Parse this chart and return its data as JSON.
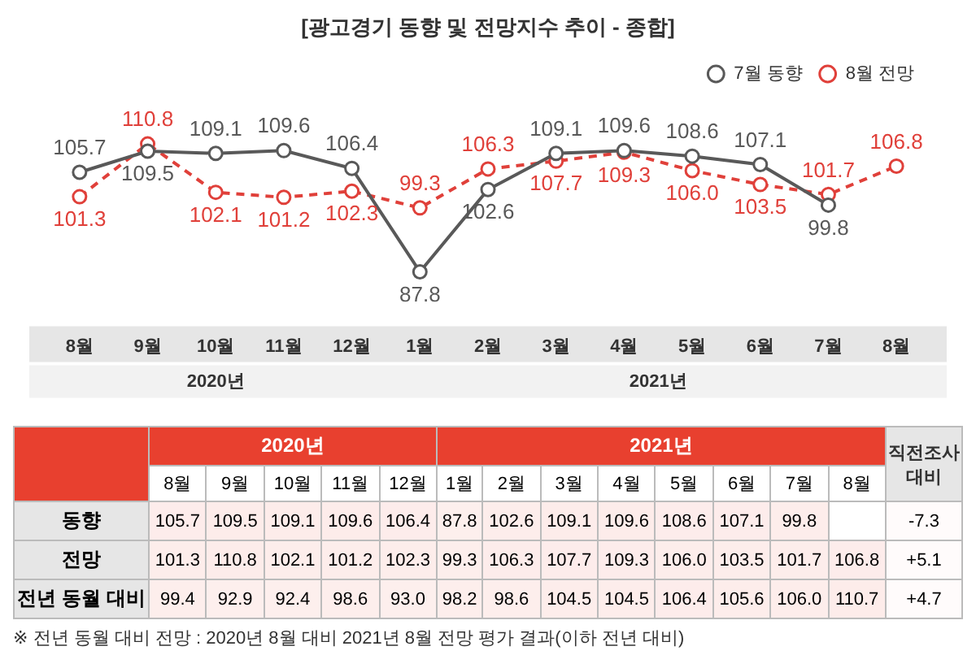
{
  "chart_data": [
    {
      "type": "line",
      "title": "[광고경기 동향 및 전망지수 추이 - 종합]",
      "categories": [
        "8월",
        "9월",
        "10월",
        "11월",
        "12월",
        "1월",
        "2월",
        "3월",
        "4월",
        "5월",
        "6월",
        "7월",
        "8월"
      ],
      "series": [
        {
          "name": "7월 동향",
          "color": "#595959",
          "line_style": "solid",
          "values": [
            105.7,
            109.5,
            109.1,
            109.6,
            106.4,
            87.8,
            102.6,
            109.1,
            109.6,
            108.6,
            107.1,
            99.8,
            null
          ]
        },
        {
          "name": "8월 전망",
          "color": "#e0403a",
          "line_style": "dashed",
          "values": [
            101.3,
            110.8,
            102.1,
            101.2,
            102.3,
            99.3,
            106.3,
            107.7,
            109.3,
            106.0,
            103.5,
            101.7,
            106.8
          ],
          "value_labels": [
            "101.3",
            "110.8",
            "102.1",
            "101.2",
            "102.3",
            "99.3",
            "106.3",
            "107.7",
            "109.3",
            "106.0",
            "103.5",
            "101.7",
            "106.8"
          ]
        }
      ],
      "marker": "circle",
      "data_labels": true,
      "legend": "top right",
      "grid": false,
      "annotations": [
        "2020년",
        "2021년"
      ]
    },
    {
      "type": "heatmap",
      "categories": [
        "8월",
        "9월",
        "10월",
        "11월",
        "12월",
        "1월",
        "2월",
        "3월",
        "4월",
        "5월",
        "6월",
        "7월",
        "8월",
        "직전조사 대비"
      ],
      "y_categories": [
        "동향",
        "전망",
        "전년 동월 대비"
      ],
      "cells": [
        [
          105.7,
          109.5,
          109.1,
          109.6,
          106.4,
          87.8,
          102.6,
          109.1,
          109.6,
          108.6,
          107.1,
          99.8,
          null,
          -7.3
        ],
        [
          101.3,
          110.8,
          102.1,
          101.2,
          102.3,
          99.3,
          106.3,
          107.7,
          109.3,
          106.0,
          103.5,
          101.7,
          106.8,
          5.1
        ],
        [
          99.4,
          92.9,
          92.4,
          98.6,
          93.0,
          98.2,
          98.6,
          104.5,
          104.5,
          106.4,
          105.6,
          106.0,
          110.7,
          4.7
        ]
      ],
      "cell_labels": [
        [
          "105.7",
          "109.5",
          "109.1",
          "109.6",
          "106.4",
          "87.8",
          "102.6",
          "109.1",
          "109.6",
          "108.6",
          "107.1",
          "99.8",
          null,
          "-7.3"
        ],
        [
          "101.3",
          "110.8",
          "102.1",
          "101.2",
          "102.3",
          "99.3",
          "106.3",
          "107.7",
          "109.3",
          "106.0",
          "103.5",
          "101.7",
          "106.8",
          "+5.1"
        ],
        [
          "99.4",
          "92.9",
          "92.4",
          "98.6",
          "93.0",
          "98.2",
          "98.6",
          "104.5",
          "104.5",
          "106.4",
          "105.6",
          "106.0",
          "110.7",
          "+4.7"
        ]
      ],
      "annotations": [
        "2020년",
        "2021년",
        "※ 전년 동월 대비 전망 : 2020년 8월 대비 2021년 8월 전망 평가 결과(이하 전년 대비)"
      ]
    }
  ]
}
